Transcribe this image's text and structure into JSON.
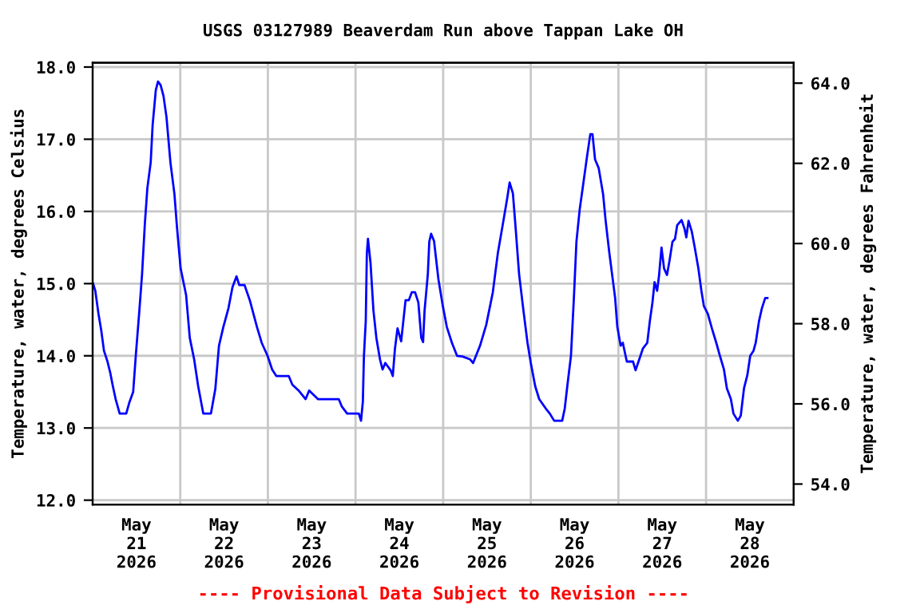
{
  "chart_data": {
    "type": "line",
    "title": "USGS 03127989 Beaverdam Run above Tappan Lake OH",
    "ylabel": "Temperature, water, degrees Celsius",
    "y2label": "Temperature, water, degrees Fahrenheit",
    "annotations": [
      "---- Provisional Data Subject to Revision ----"
    ],
    "xlim": [
      "2026-05-21T00:00",
      "2026-05-29T00:00"
    ],
    "xticks": [
      {
        "value": "2026-05-21T12:00",
        "label": "May\n21\n2026"
      },
      {
        "value": "2026-05-22T12:00",
        "label": "May\n22\n2026"
      },
      {
        "value": "2026-05-23T12:00",
        "label": "May\n23\n2026"
      },
      {
        "value": "2026-05-24T12:00",
        "label": "May\n24\n2026"
      },
      {
        "value": "2026-05-25T12:00",
        "label": "May\n25\n2026"
      },
      {
        "value": "2026-05-26T12:00",
        "label": "May\n26\n2026"
      },
      {
        "value": "2026-05-27T12:00",
        "label": "May\n27\n2026"
      },
      {
        "value": "2026-05-28T12:00",
        "label": "May\n28\n2026"
      },
      {
        "value": "2026-05-22T00:00",
        "label": null
      },
      {
        "value": "2026-05-23T00:00",
        "label": null
      },
      {
        "value": "2026-05-24T00:00",
        "label": null
      },
      {
        "value": "2026-05-25T00:00",
        "label": null
      },
      {
        "value": "2026-05-26T00:00",
        "label": null
      },
      {
        "value": "2026-05-27T00:00",
        "label": null
      },
      {
        "value": "2026-05-28T00:00",
        "label": null
      }
    ],
    "ylim": [
      11.94,
      18.06
    ],
    "yticks": [
      {
        "value": 12,
        "label": "12.0"
      },
      {
        "value": 13,
        "label": "13.0"
      },
      {
        "value": 14,
        "label": "14.0"
      },
      {
        "value": 15,
        "label": "15.0"
      },
      {
        "value": 16,
        "label": "16.0"
      },
      {
        "value": 17,
        "label": "17.0"
      },
      {
        "value": 18,
        "label": "18.0"
      }
    ],
    "y2lim": [
      53.49,
      64.51
    ],
    "y2ticks": [
      {
        "value": 54,
        "label": "54.0"
      },
      {
        "value": 56,
        "label": "56.0"
      },
      {
        "value": 58,
        "label": "58.0"
      },
      {
        "value": 60,
        "label": "60.0"
      },
      {
        "value": 62,
        "label": "62.0"
      },
      {
        "value": 64,
        "label": "64.0"
      }
    ],
    "grid": true,
    "legend": false,
    "series": [
      {
        "color": "#0000ff",
        "x": [
          "2026-05-21T00:08",
          "2026-05-21T00:44",
          "2026-05-21T01:36",
          "2026-05-21T02:20",
          "2026-05-21T03:06",
          "2026-05-21T04:04",
          "2026-05-21T04:48",
          "2026-05-21T05:32",
          "2026-05-21T06:18",
          "2026-05-21T07:24",
          "2026-05-21T09:12",
          "2026-05-21T10:02",
          "2026-05-21T11:06",
          "2026-05-21T11:48",
          "2026-05-21T12:48",
          "2026-05-21T13:32",
          "2026-05-21T14:18",
          "2026-05-21T14:59",
          "2026-05-21T15:54",
          "2026-05-21T16:26",
          "2026-05-21T17:18",
          "2026-05-21T17:54",
          "2026-05-21T18:37",
          "2026-05-21T19:24",
          "2026-05-21T20:13",
          "2026-05-21T21:18",
          "2026-05-21T22:24",
          "2026-05-21T23:08",
          "2026-05-22T00:06",
          "2026-05-22T01:36",
          "2026-05-22T02:36",
          "2026-05-22T03:48",
          "2026-05-22T04:54",
          "2026-05-22T06:18",
          "2026-05-22T08:24",
          "2026-05-22T09:36",
          "2026-05-22T10:36",
          "2026-05-22T11:48",
          "2026-05-22T13:12",
          "2026-05-22T14:18",
          "2026-05-22T15:24",
          "2026-05-22T16:09",
          "2026-05-22T17:36",
          "2026-05-22T19:06",
          "2026-05-22T21:00",
          "2026-05-22T22:18",
          "2026-05-22T23:54",
          "2026-05-23T01:10",
          "2026-05-23T02:18",
          "2026-05-23T05:42",
          "2026-05-23T06:42",
          "2026-05-23T08:24",
          "2026-05-23T10:20",
          "2026-05-23T11:18",
          "2026-05-23T13:42",
          "2026-05-23T19:24",
          "2026-05-23T20:13",
          "2026-05-23T21:42",
          "2026-05-24T00:54",
          "2026-05-24T01:30",
          "2026-05-24T02:00",
          "2026-05-24T02:18",
          "2026-05-24T02:48",
          "2026-05-24T03:06",
          "2026-05-24T03:24",
          "2026-05-24T04:06",
          "2026-05-24T04:54",
          "2026-05-24T05:42",
          "2026-05-24T06:42",
          "2026-05-24T07:24",
          "2026-05-24T08:09",
          "2026-05-24T09:36",
          "2026-05-24T10:12",
          "2026-05-24T10:48",
          "2026-05-24T11:30",
          "2026-05-24T12:30",
          "2026-05-24T13:42",
          "2026-05-24T14:36",
          "2026-05-24T15:24",
          "2026-05-24T16:18",
          "2026-05-24T17:12",
          "2026-05-24T18:00",
          "2026-05-24T18:30",
          "2026-05-24T18:54",
          "2026-05-24T19:48",
          "2026-05-24T20:12",
          "2026-05-24T20:42",
          "2026-05-24T21:30",
          "2026-05-24T22:42",
          "2026-05-24T23:54",
          "2026-05-25T01:00",
          "2026-05-25T02:24",
          "2026-05-25T03:48",
          "2026-05-25T05:18",
          "2026-05-25T07:24",
          "2026-05-25T08:12",
          "2026-05-25T10:06",
          "2026-05-25T11:48",
          "2026-05-25T13:36",
          "2026-05-25T15:00",
          "2026-05-25T16:30",
          "2026-05-25T17:36",
          "2026-05-25T18:12",
          "2026-05-25T19:06",
          "2026-05-25T19:48",
          "2026-05-25T20:48",
          "2026-05-25T22:00",
          "2026-05-25T23:06",
          "2026-05-26T00:00",
          "2026-05-26T01:12",
          "2026-05-26T02:18",
          "2026-05-26T04:06",
          "2026-05-26T05:12",
          "2026-05-26T06:24",
          "2026-05-26T08:36",
          "2026-05-26T09:18",
          "2026-05-26T10:00",
          "2026-05-26T11:00",
          "2026-05-26T11:48",
          "2026-05-26T12:30",
          "2026-05-26T13:24",
          "2026-05-26T14:12",
          "2026-05-26T15:24",
          "2026-05-26T16:18",
          "2026-05-26T16:54",
          "2026-05-26T17:36",
          "2026-05-26T18:36",
          "2026-05-26T19:48",
          "2026-05-26T20:30",
          "2026-05-26T21:30",
          "2026-05-26T23:06",
          "2026-05-26T23:42",
          "2026-05-27T00:36",
          "2026-05-27T01:12",
          "2026-05-27T02:18",
          "2026-05-27T04:00",
          "2026-05-27T04:42",
          "2026-05-27T05:30",
          "2026-05-27T06:42",
          "2026-05-27T07:54",
          "2026-05-27T08:36",
          "2026-05-27T09:18",
          "2026-05-27T09:54",
          "2026-05-27T10:36",
          "2026-05-27T11:06",
          "2026-05-27T11:48",
          "2026-05-27T12:30",
          "2026-05-27T13:18",
          "2026-05-27T14:00",
          "2026-05-27T14:48",
          "2026-05-27T15:30",
          "2026-05-27T16:06",
          "2026-05-27T17:18",
          "2026-05-27T18:06",
          "2026-05-27T18:36",
          "2026-05-27T19:12",
          "2026-05-27T20:06",
          "2026-05-27T20:54",
          "2026-05-27T21:54",
          "2026-05-27T22:42",
          "2026-05-27T23:24",
          "2026-05-28T00:30",
          "2026-05-28T01:36",
          "2026-05-28T02:48",
          "2026-05-28T03:48",
          "2026-05-28T04:54",
          "2026-05-28T05:42",
          "2026-05-28T06:48",
          "2026-05-28T07:30",
          "2026-05-28T08:42",
          "2026-05-28T09:30",
          "2026-05-28T10:24",
          "2026-05-28T11:18",
          "2026-05-28T12:06",
          "2026-05-28T13:00",
          "2026-05-28T13:36",
          "2026-05-28T14:30",
          "2026-05-28T15:18",
          "2026-05-28T16:12",
          "2026-05-28T16:48"
        ],
        "values": [
          15.0,
          14.9,
          14.58,
          14.36,
          14.07,
          13.92,
          13.77,
          13.58,
          13.4,
          13.2,
          13.2,
          13.35,
          13.5,
          13.99,
          14.63,
          15.13,
          15.83,
          16.32,
          16.68,
          17.2,
          17.68,
          17.8,
          17.75,
          17.6,
          17.31,
          16.68,
          16.24,
          15.76,
          15.21,
          14.84,
          14.25,
          13.95,
          13.58,
          13.2,
          13.2,
          13.54,
          14.14,
          14.4,
          14.66,
          14.95,
          15.1,
          14.98,
          14.98,
          14.76,
          14.4,
          14.18,
          14.0,
          13.81,
          13.72,
          13.72,
          13.6,
          13.52,
          13.4,
          13.52,
          13.4,
          13.4,
          13.3,
          13.2,
          13.2,
          13.1,
          13.36,
          14.0,
          14.48,
          15.42,
          15.62,
          15.29,
          14.63,
          14.25,
          13.95,
          13.81,
          13.9,
          13.8,
          13.72,
          14.1,
          14.38,
          14.2,
          14.77,
          14.77,
          14.88,
          14.88,
          14.74,
          14.25,
          14.19,
          14.62,
          15.13,
          15.58,
          15.69,
          15.59,
          15.06,
          14.69,
          14.4,
          14.18,
          14.0,
          13.99,
          13.95,
          13.9,
          14.14,
          14.43,
          14.88,
          15.43,
          15.87,
          16.2,
          16.4,
          16.25,
          15.8,
          15.13,
          14.62,
          14.18,
          13.9,
          13.58,
          13.4,
          13.27,
          13.2,
          13.1,
          13.1,
          13.27,
          13.58,
          14.0,
          14.8,
          15.58,
          16.03,
          16.32,
          16.76,
          17.07,
          17.07,
          16.72,
          16.6,
          16.24,
          15.87,
          15.43,
          14.8,
          14.4,
          14.14,
          14.18,
          13.92,
          13.92,
          13.8,
          13.92,
          14.1,
          14.18,
          14.48,
          14.73,
          15.02,
          14.9,
          15.1,
          15.5,
          15.21,
          15.12,
          15.32,
          15.58,
          15.62,
          15.81,
          15.88,
          15.76,
          15.64,
          15.87,
          15.72,
          15.5,
          15.21,
          14.91,
          14.69,
          14.58,
          14.38,
          14.18,
          14.0,
          13.81,
          13.55,
          13.4,
          13.2,
          13.1,
          13.17,
          13.55,
          13.73,
          14.0,
          14.07,
          14.18,
          14.48,
          14.66,
          14.8,
          14.8
        ]
      }
    ]
  }
}
